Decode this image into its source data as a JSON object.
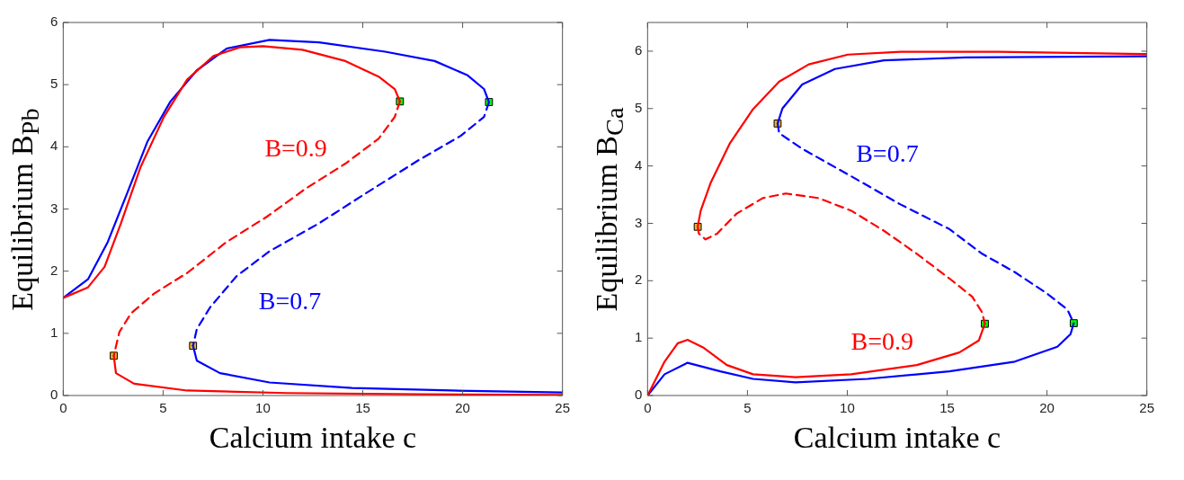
{
  "chart_data": [
    {
      "type": "line",
      "xlabel": "Calcium intake c",
      "ylabel": "Equilibrium B$_{Pb}$",
      "xlim": [
        0,
        25
      ],
      "ylim": [
        0,
        6
      ],
      "xticks": [
        0,
        5,
        10,
        15,
        20,
        25
      ],
      "yticks": [
        0,
        1,
        2,
        3,
        4,
        5,
        6
      ],
      "grid": false,
      "legend": false,
      "series": [
        {
          "color": "#ff0000",
          "line_style": "solid",
          "x": [
            0,
            1.24,
            2.07,
            2.89,
            3.88,
            5.04,
            6.2,
            7.52,
            8.84,
            10.0,
            11.98,
            14.13,
            15.79,
            16.6,
            16.86
          ],
          "values": [
            1.57,
            1.74,
            2.07,
            2.77,
            3.68,
            4.48,
            5.08,
            5.46,
            5.6,
            5.62,
            5.56,
            5.38,
            5.13,
            4.93,
            4.73
          ]
        },
        {
          "name": "B=0.9",
          "color": "#ff0000",
          "line_style": "dashed",
          "x": [
            16.86,
            16.6,
            15.79,
            14.13,
            12.15,
            10.17,
            8.18,
            6.2,
            4.55,
            3.39,
            2.81,
            2.53
          ],
          "values": [
            4.73,
            4.48,
            4.13,
            3.73,
            3.33,
            2.87,
            2.47,
            1.97,
            1.64,
            1.32,
            1.02,
            0.64
          ]
        },
        {
          "color": "#ff0000",
          "line_style": "solid",
          "x": [
            2.53,
            2.64,
            3.55,
            6.2,
            11.16,
            17.77,
            25
          ],
          "values": [
            0.64,
            0.36,
            0.19,
            0.08,
            0.04,
            0.02,
            0.01
          ]
        },
        {
          "color": "#0000ff",
          "line_style": "solid",
          "x": [
            0,
            1.24,
            2.23,
            3.22,
            4.21,
            5.37,
            6.69,
            8.18,
            10.33,
            12.81,
            16.12,
            18.6,
            20.25,
            21.07,
            21.32
          ],
          "values": [
            1.57,
            1.87,
            2.47,
            3.27,
            4.08,
            4.73,
            5.23,
            5.58,
            5.72,
            5.68,
            5.53,
            5.38,
            5.15,
            4.93,
            4.72
          ]
        },
        {
          "name": "B=0.7",
          "color": "#0000ff",
          "line_style": "dashed",
          "x": [
            21.32,
            21.07,
            19.92,
            17.77,
            15.29,
            12.81,
            10.33,
            8.68,
            7.36,
            6.69,
            6.5
          ],
          "values": [
            4.72,
            4.48,
            4.18,
            3.78,
            3.28,
            2.77,
            2.32,
            1.92,
            1.42,
            1.07,
            0.8
          ]
        },
        {
          "color": "#0000ff",
          "line_style": "solid",
          "x": [
            6.5,
            6.69,
            7.85,
            10.33,
            14.46,
            19.42,
            25
          ],
          "values": [
            0.8,
            0.56,
            0.36,
            0.21,
            0.12,
            0.08,
            0.05
          ]
        },
        {
          "type": "scatter",
          "color": "#edb120",
          "marker": "square",
          "x": [
            2.53,
            6.5
          ],
          "values": [
            0.64,
            0.8
          ]
        },
        {
          "type": "scatter",
          "color": "#00ff00",
          "marker": "square",
          "x": [
            16.86,
            21.32
          ],
          "values": [
            4.73,
            4.72
          ]
        }
      ]
    },
    {
      "type": "line",
      "xlabel": "Calcium intake c",
      "ylabel": "Equilibrium B$_{Ca}$",
      "xlim": [
        0,
        25
      ],
      "ylim": [
        0,
        6.5
      ],
      "xticks": [
        0,
        5,
        10,
        15,
        20,
        25
      ],
      "yticks": [
        0,
        1,
        2,
        3,
        4,
        5,
        6
      ],
      "grid": false,
      "legend": false,
      "series": [
        {
          "color": "#ff0000",
          "line_style": "solid",
          "x": [
            2.51,
            2.66,
            3.15,
            4.13,
            5.28,
            6.59,
            8.07,
            10.03,
            12.66,
            17.57,
            25
          ],
          "values": [
            2.94,
            3.22,
            3.7,
            4.4,
            4.99,
            5.47,
            5.77,
            5.94,
            5.99,
            5.99,
            5.95
          ]
        },
        {
          "name": "B=0.9",
          "color": "#ff0000",
          "line_style": "dashed",
          "x": [
            2.51,
            2.57,
            2.9,
            3.48,
            4.46,
            5.77,
            6.92,
            8.56,
            10.2,
            11.84,
            13.48,
            15.11,
            16.26,
            16.75,
            16.89
          ],
          "values": [
            2.94,
            2.82,
            2.72,
            2.82,
            3.17,
            3.44,
            3.52,
            3.44,
            3.22,
            2.87,
            2.47,
            2.04,
            1.72,
            1.45,
            1.25
          ]
        },
        {
          "color": "#ff0000",
          "line_style": "solid",
          "x": [
            0,
            0.85,
            1.51,
            2.0,
            2.82,
            3.97,
            5.28,
            7.41,
            10.2,
            13.48,
            15.61,
            16.59,
            16.89
          ],
          "values": [
            0,
            0.59,
            0.91,
            0.97,
            0.83,
            0.53,
            0.37,
            0.32,
            0.37,
            0.53,
            0.75,
            0.96,
            1.25
          ]
        },
        {
          "color": "#0000ff",
          "line_style": "solid",
          "x": [
            6.51,
            6.75,
            7.74,
            9.38,
            11.84,
            15.93,
            25
          ],
          "values": [
            4.74,
            5.0,
            5.42,
            5.69,
            5.84,
            5.89,
            5.91
          ]
        },
        {
          "name": "B=0.7",
          "color": "#0000ff",
          "line_style": "dashed",
          "x": [
            6.51,
            6.59,
            7.74,
            10.2,
            12.66,
            15.11,
            16.75,
            18.39,
            20.03,
            21.02,
            21.34
          ],
          "values": [
            4.74,
            4.57,
            4.3,
            3.82,
            3.33,
            2.9,
            2.47,
            2.15,
            1.77,
            1.5,
            1.26
          ]
        },
        {
          "color": "#0000ff",
          "line_style": "solid",
          "x": [
            0,
            0.85,
            2.0,
            3.64,
            5.28,
            7.41,
            11.02,
            15.11,
            18.39,
            20.52,
            21.18,
            21.34
          ],
          "values": [
            0,
            0.37,
            0.57,
            0.42,
            0.29,
            0.23,
            0.29,
            0.42,
            0.59,
            0.85,
            1.07,
            1.26
          ]
        },
        {
          "type": "scatter",
          "color": "#edb120",
          "marker": "square",
          "x": [
            2.51,
            6.51
          ],
          "values": [
            2.94,
            4.74
          ]
        },
        {
          "type": "scatter",
          "color": "#00ff00",
          "marker": "square",
          "x": [
            16.89,
            21.34
          ],
          "values": [
            1.25,
            1.26
          ]
        }
      ]
    }
  ]
}
